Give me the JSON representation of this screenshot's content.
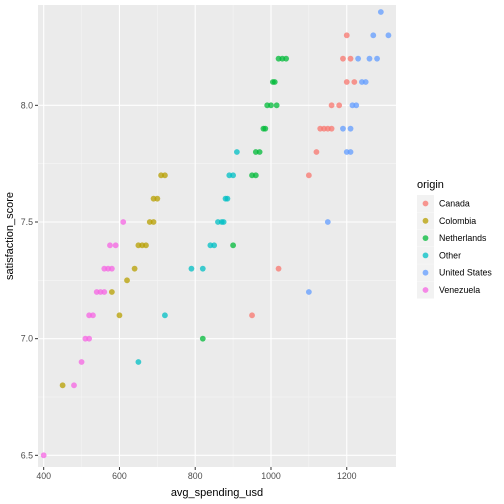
{
  "chart_data": {
    "type": "scatter",
    "xlabel": "avg_spending_usd",
    "ylabel": "satisfaction_score",
    "xlim": [
      385,
      1330
    ],
    "ylim": [
      6.45,
      8.43
    ],
    "x_ticks": [
      400,
      600,
      800,
      1000,
      1200
    ],
    "y_ticks": [
      6.5,
      7.0,
      7.5,
      8.0
    ],
    "y_tick_labels": [
      "6.5",
      "7.0",
      "7.5",
      "8.0"
    ],
    "x_tick_labels": [
      "400",
      "600",
      "800",
      "1000",
      "1200"
    ],
    "grid": true,
    "legend": {
      "title": "origin",
      "position": "right"
    },
    "series": [
      {
        "name": "Canada",
        "color": "#F8766D",
        "points": [
          [
            950,
            7.1
          ],
          [
            1020,
            7.3
          ],
          [
            1100,
            7.7
          ],
          [
            1120,
            7.8
          ],
          [
            1130,
            7.9
          ],
          [
            1140,
            7.9
          ],
          [
            1150,
            7.9
          ],
          [
            1160,
            7.9
          ],
          [
            1160,
            8.0
          ],
          [
            1180,
            8.0
          ],
          [
            1190,
            8.2
          ],
          [
            1200,
            8.1
          ],
          [
            1210,
            8.2
          ],
          [
            1220,
            8.1
          ],
          [
            1200,
            8.3
          ]
        ]
      },
      {
        "name": "Colombia",
        "color": "#B79F00",
        "points": [
          [
            450,
            6.8
          ],
          [
            580,
            7.2
          ],
          [
            600,
            7.1
          ],
          [
            620,
            7.25
          ],
          [
            640,
            7.3
          ],
          [
            650,
            7.4
          ],
          [
            660,
            7.4
          ],
          [
            670,
            7.4
          ],
          [
            680,
            7.5
          ],
          [
            690,
            7.5
          ],
          [
            690,
            7.6
          ],
          [
            700,
            7.6
          ],
          [
            710,
            7.7
          ],
          [
            720,
            7.7
          ]
        ]
      },
      {
        "name": "Netherlands",
        "color": "#00BA38",
        "points": [
          [
            820,
            7.0
          ],
          [
            900,
            7.4
          ],
          [
            950,
            7.7
          ],
          [
            960,
            7.8
          ],
          [
            970,
            7.8
          ],
          [
            980,
            7.9
          ],
          [
            990,
            8.0
          ],
          [
            1000,
            8.0
          ],
          [
            1010,
            8.1
          ],
          [
            1020,
            8.2
          ],
          [
            1030,
            8.2
          ],
          [
            1040,
            8.2
          ],
          [
            960,
            7.7
          ],
          [
            985,
            7.9
          ],
          [
            1005,
            8.1
          ],
          [
            1015,
            8.0
          ]
        ]
      },
      {
        "name": "Other",
        "color": "#00BFC4",
        "points": [
          [
            650,
            6.9
          ],
          [
            720,
            7.1
          ],
          [
            790,
            7.3
          ],
          [
            820,
            7.3
          ],
          [
            840,
            7.4
          ],
          [
            850,
            7.4
          ],
          [
            860,
            7.5
          ],
          [
            870,
            7.5
          ],
          [
            880,
            7.6
          ],
          [
            885,
            7.6
          ],
          [
            890,
            7.7
          ],
          [
            900,
            7.7
          ],
          [
            910,
            7.8
          ],
          [
            875,
            7.5
          ]
        ]
      },
      {
        "name": "United States",
        "color": "#619CFF",
        "points": [
          [
            1100,
            7.2
          ],
          [
            1150,
            7.5
          ],
          [
            1190,
            7.9
          ],
          [
            1200,
            7.8
          ],
          [
            1210,
            7.8
          ],
          [
            1210,
            7.9
          ],
          [
            1215,
            8.0
          ],
          [
            1225,
            8.0
          ],
          [
            1230,
            8.2
          ],
          [
            1240,
            8.1
          ],
          [
            1250,
            8.1
          ],
          [
            1260,
            8.2
          ],
          [
            1270,
            8.3
          ],
          [
            1280,
            8.2
          ],
          [
            1290,
            8.4
          ],
          [
            1310,
            8.3
          ]
        ]
      },
      {
        "name": "Venezuela",
        "color": "#F564E3",
        "points": [
          [
            400,
            6.5
          ],
          [
            480,
            6.8
          ],
          [
            500,
            6.9
          ],
          [
            510,
            7.0
          ],
          [
            520,
            7.0
          ],
          [
            520,
            7.1
          ],
          [
            530,
            7.1
          ],
          [
            540,
            7.2
          ],
          [
            550,
            7.2
          ],
          [
            560,
            7.2
          ],
          [
            560,
            7.3
          ],
          [
            570,
            7.3
          ],
          [
            580,
            7.3
          ],
          [
            575,
            7.4
          ],
          [
            590,
            7.4
          ],
          [
            610,
            7.5
          ]
        ]
      }
    ]
  }
}
